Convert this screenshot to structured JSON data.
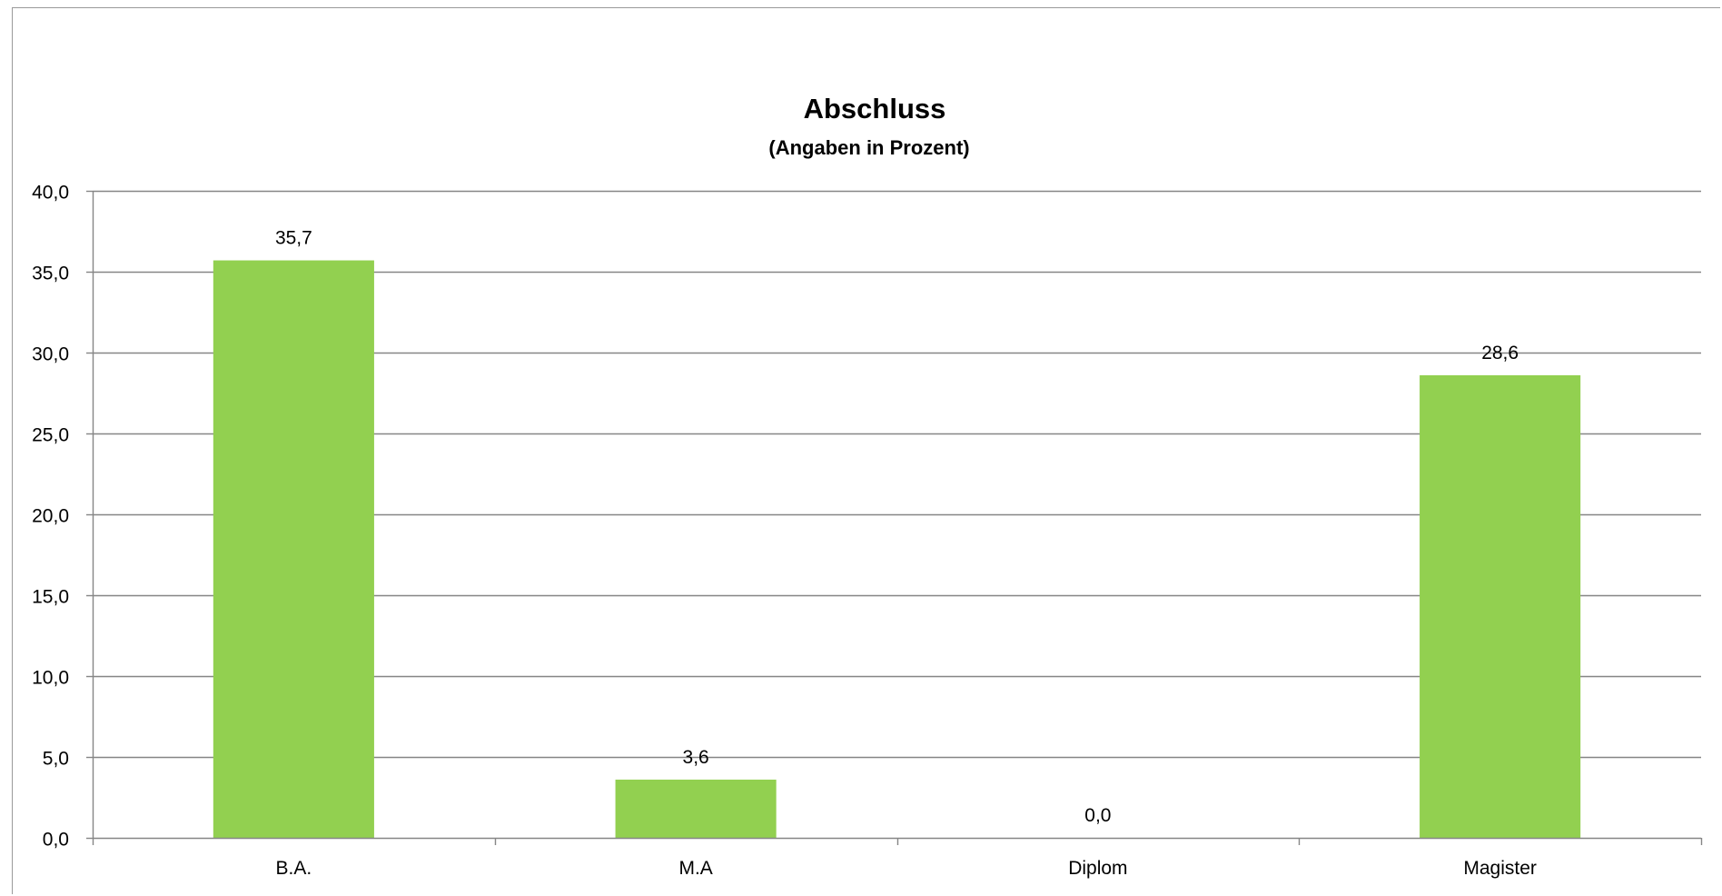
{
  "chart_data": {
    "type": "bar",
    "title": "Abschluss",
    "subtitle": "(Angaben in Prozent)",
    "categories": [
      "B.A.",
      "M.A",
      "Diplom",
      "Magister"
    ],
    "values": [
      35.7,
      3.6,
      0.0,
      28.6
    ],
    "value_labels": [
      "35,7",
      "3,6",
      "0,0",
      "28,6"
    ],
    "ylim": [
      0,
      40
    ],
    "yticks": [
      0,
      5,
      10,
      15,
      20,
      25,
      30,
      35,
      40
    ],
    "ytick_labels": [
      "0,0",
      "5,0",
      "10,0",
      "15,0",
      "20,0",
      "25,0",
      "30,0",
      "35,0",
      "40,0"
    ],
    "xlabel": "",
    "ylabel": "",
    "grid": true,
    "legend": "none",
    "bar_color": "#92d050",
    "grid_color": "#868686"
  }
}
